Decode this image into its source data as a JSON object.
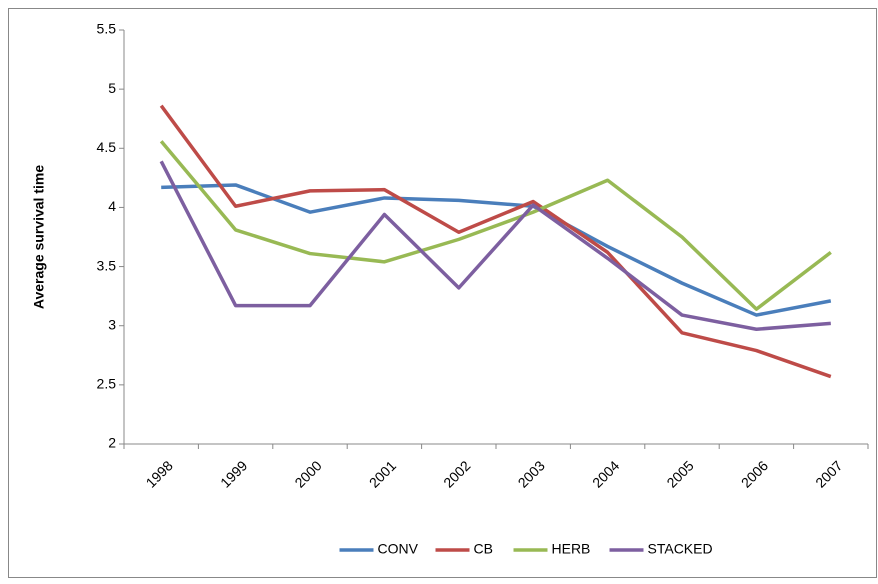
{
  "chart_data": {
    "type": "line",
    "ylabel": "Average survival time",
    "categories": [
      "1998",
      "1999",
      "2000",
      "2001",
      "2002",
      "2003",
      "2004",
      "2005",
      "2006",
      "2007"
    ],
    "series": [
      {
        "name": "CONV",
        "color": "#4a7ebb",
        "values": [
          4.17,
          4.19,
          3.96,
          4.08,
          4.06,
          4.01,
          3.67,
          3.36,
          3.09,
          3.21
        ]
      },
      {
        "name": "CB",
        "color": "#be4b48",
        "values": [
          4.86,
          4.01,
          4.14,
          4.15,
          3.79,
          4.05,
          3.62,
          2.94,
          2.79,
          2.57
        ]
      },
      {
        "name": "HERB",
        "color": "#98b954",
        "values": [
          4.56,
          3.81,
          3.61,
          3.54,
          3.73,
          3.96,
          4.23,
          3.75,
          3.14,
          3.62
        ]
      },
      {
        "name": "STACKED",
        "color": "#7d5fa0",
        "values": [
          4.39,
          3.17,
          3.17,
          3.94,
          3.32,
          4.02,
          3.57,
          3.09,
          2.97,
          3.02
        ]
      }
    ],
    "ylim": [
      2,
      5.5
    ],
    "yticks": [
      2,
      2.5,
      3,
      3.5,
      4,
      4.5,
      5,
      5.5
    ],
    "grid": false,
    "legend": "bottom"
  }
}
